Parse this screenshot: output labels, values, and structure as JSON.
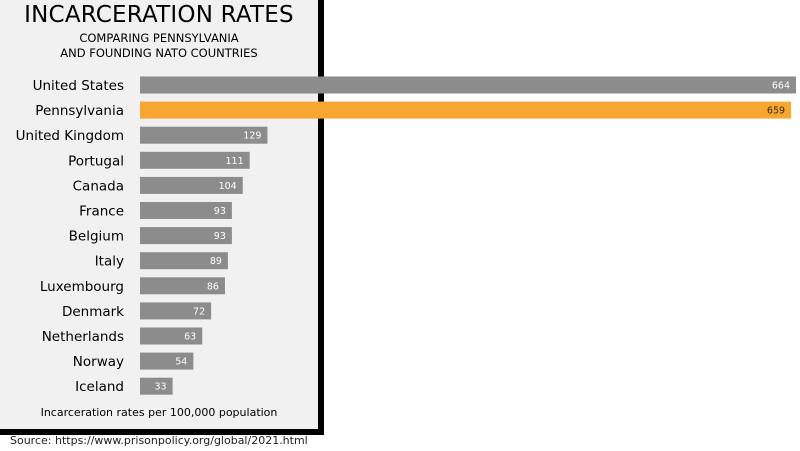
{
  "title": "INCARCERATION RATES",
  "subtitle_line1": "COMPARING PENNSYLVANIA",
  "subtitle_line2": "AND FOUNDING NATO COUNTRIES",
  "footnote": "Incarceration rates per 100,000 population",
  "source": "Source: https://www.prisonpolicy.org/global/2021.html",
  "colors": {
    "bar": "#8c8c8c",
    "highlight": "#f7a731",
    "panel": "#f1f1f1",
    "border": "#000000"
  },
  "chart_data": {
    "type": "bar",
    "orientation": "horizontal",
    "categories": [
      "United States",
      "Pennsylvania",
      "United Kingdom",
      "Portugal",
      "Canada",
      "France",
      "Belgium",
      "Italy",
      "Luxembourg",
      "Denmark",
      "Netherlands",
      "Norway",
      "Iceland"
    ],
    "values": [
      664,
      659,
      129,
      111,
      104,
      93,
      93,
      89,
      86,
      72,
      63,
      54,
      33
    ],
    "highlight_category": "Pennsylvania",
    "xlim": [
      0,
      664
    ],
    "grid": false,
    "legend": "none"
  }
}
